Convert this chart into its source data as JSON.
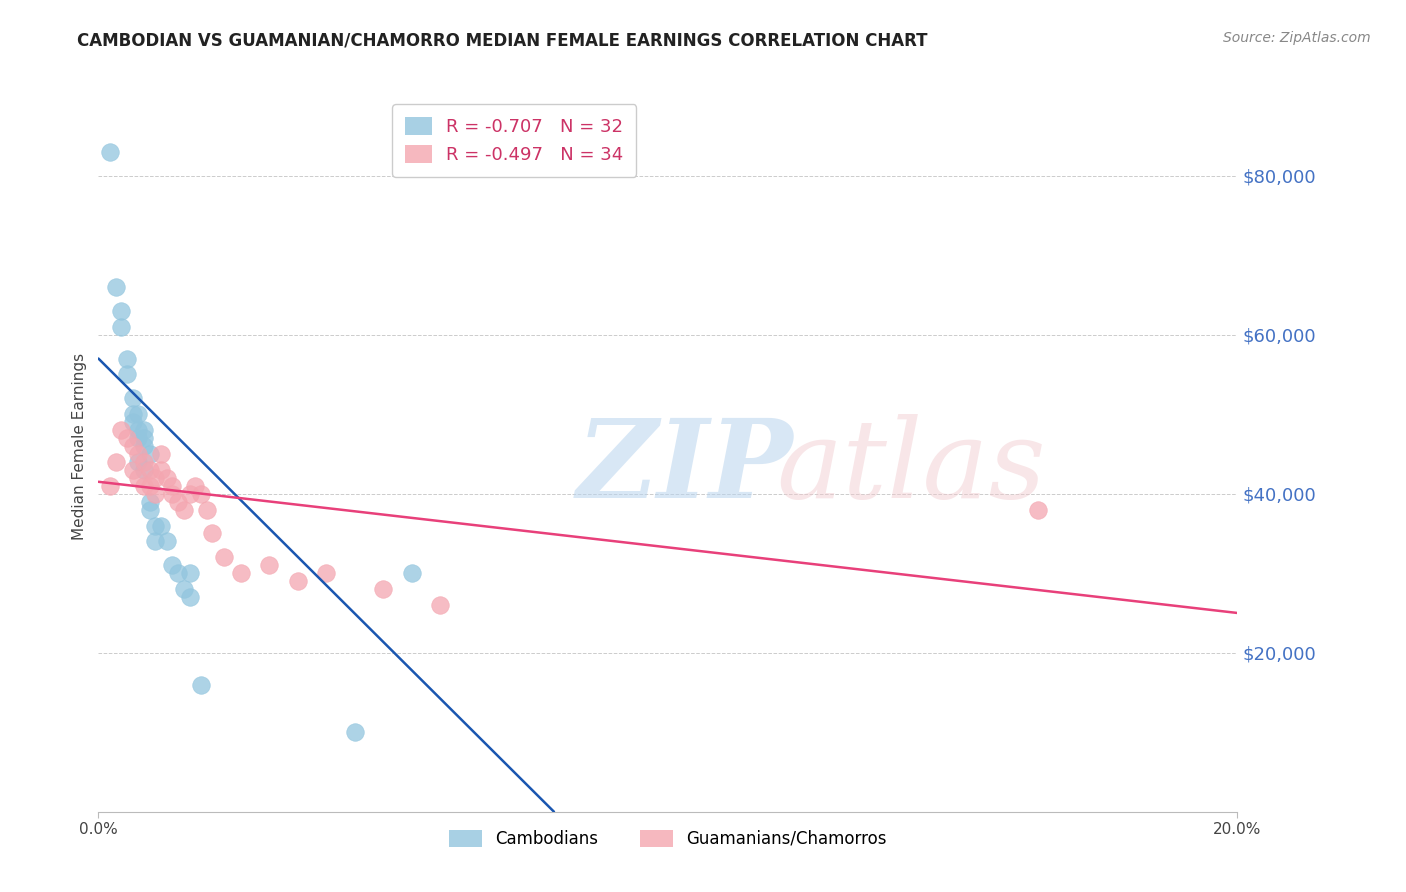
{
  "title": "CAMBODIAN VS GUAMANIAN/CHAMORRO MEDIAN FEMALE EARNINGS CORRELATION CHART",
  "source": "Source: ZipAtlas.com",
  "ylabel": "Median Female Earnings",
  "yticks": [
    20000,
    40000,
    60000,
    80000
  ],
  "ytick_labels": [
    "$20,000",
    "$40,000",
    "$60,000",
    "$80,000"
  ],
  "ymin": 0,
  "ymax": 92000,
  "xmin": 0.0,
  "xmax": 0.2,
  "xtick_labels": [
    "0.0%",
    "20.0%"
  ],
  "legend_cambodian": "R = -0.707   N = 32",
  "legend_guamanian": "R = -0.497   N = 34",
  "legend_label_cambodian": "Cambodians",
  "legend_label_guamanian": "Guamanians/Chamorros",
  "color_cambodian": "#92c5de",
  "color_guamanian": "#f4a6b0",
  "color_line_cambodian": "#1a56b0",
  "color_line_guamanian": "#e8407a",
  "color_ytick_labels": "#4472c4",
  "color_title": "#222222",
  "color_source": "#888888",
  "background_color": "#ffffff",
  "grid_color": "#cccccc",
  "cambodian_x": [
    0.002,
    0.003,
    0.004,
    0.004,
    0.005,
    0.005,
    0.006,
    0.006,
    0.006,
    0.007,
    0.007,
    0.007,
    0.007,
    0.008,
    0.008,
    0.008,
    0.008,
    0.009,
    0.009,
    0.009,
    0.01,
    0.01,
    0.011,
    0.012,
    0.013,
    0.014,
    0.015,
    0.016,
    0.016,
    0.018,
    0.045,
    0.055
  ],
  "cambodian_y": [
    83000,
    66000,
    63000,
    61000,
    57000,
    55000,
    52000,
    50000,
    49000,
    50000,
    48000,
    47000,
    44000,
    48000,
    47000,
    46000,
    43000,
    45000,
    39000,
    38000,
    36000,
    34000,
    36000,
    34000,
    31000,
    30000,
    28000,
    30000,
    27000,
    16000,
    10000,
    30000
  ],
  "guamanian_x": [
    0.002,
    0.003,
    0.004,
    0.005,
    0.006,
    0.006,
    0.007,
    0.007,
    0.008,
    0.008,
    0.009,
    0.009,
    0.01,
    0.01,
    0.011,
    0.011,
    0.012,
    0.013,
    0.013,
    0.014,
    0.015,
    0.016,
    0.017,
    0.018,
    0.019,
    0.02,
    0.022,
    0.025,
    0.03,
    0.035,
    0.04,
    0.05,
    0.06,
    0.165
  ],
  "guamanian_y": [
    41000,
    44000,
    48000,
    47000,
    46000,
    43000,
    45000,
    42000,
    44000,
    41000,
    43000,
    41000,
    42000,
    40000,
    45000,
    43000,
    42000,
    40000,
    41000,
    39000,
    38000,
    40000,
    41000,
    40000,
    38000,
    35000,
    32000,
    30000,
    31000,
    29000,
    30000,
    28000,
    26000,
    38000
  ],
  "line_camb_x0": 0.0,
  "line_camb_y0": 57000,
  "line_camb_x1": 0.08,
  "line_camb_y1": 0,
  "line_guam_x0": 0.0,
  "line_guam_y0": 41500,
  "line_guam_x1": 0.2,
  "line_guam_y1": 25000
}
